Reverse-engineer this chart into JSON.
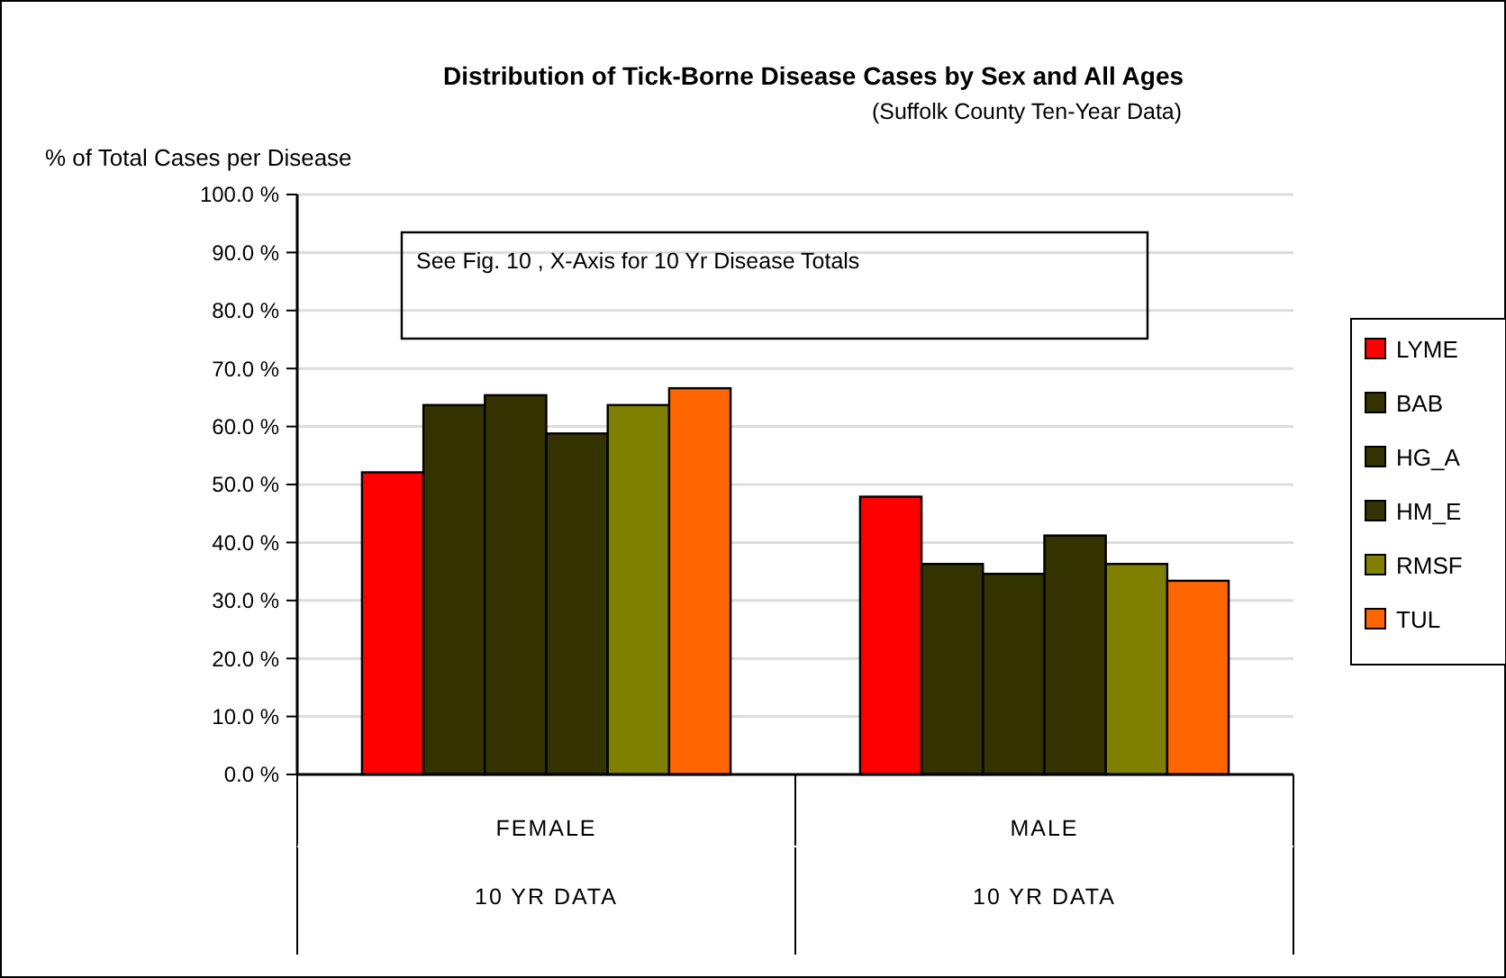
{
  "chart_data": {
    "type": "bar",
    "title": "Distribution of Tick-Borne Disease Cases by Sex and All Ages",
    "subtitle": "(Suffolk County Ten-Year Data)",
    "ylabel": "% of Total Cases per Disease",
    "categories": [
      "FEMALE\n10 YR DATA",
      "MALE\n10 YR DATA"
    ],
    "series": [
      {
        "name": "LYME",
        "color": "#ff0000",
        "values": [
          52.1,
          47.9
        ]
      },
      {
        "name": "BAB",
        "color": "#333300",
        "values": [
          63.7,
          36.3
        ]
      },
      {
        "name": "HG_A",
        "color": "#333300",
        "values": [
          65.4,
          34.6
        ]
      },
      {
        "name": "HM_E",
        "color": "#333300",
        "values": [
          58.8,
          41.2
        ]
      },
      {
        "name": "RMSF",
        "color": "#808000",
        "values": [
          63.7,
          36.3
        ]
      },
      {
        "name": "TUL",
        "color": "#ff6600",
        "values": [
          66.6,
          33.4
        ]
      }
    ],
    "ylim": [
      0,
      100
    ],
    "yticks": [
      {
        "value": 0,
        "label": "0.0 %"
      },
      {
        "value": 10,
        "label": "10.0 %"
      },
      {
        "value": 20,
        "label": "20.0 %"
      },
      {
        "value": 30,
        "label": "30.0 %"
      },
      {
        "value": 40,
        "label": "40.0 %"
      },
      {
        "value": 50,
        "label": "50.0 %"
      },
      {
        "value": 60,
        "label": "60.0 %"
      },
      {
        "value": 70,
        "label": "70.0 %"
      },
      {
        "value": 80,
        "label": "80.0 %"
      },
      {
        "value": 90,
        "label": "90.0 %"
      },
      {
        "value": 100,
        "label": "100.0 %"
      }
    ],
    "grid": "y",
    "legend": "right",
    "annotations": [
      "See Fig. 10 , X-Axis  for 10 Yr Disease Totals"
    ]
  }
}
